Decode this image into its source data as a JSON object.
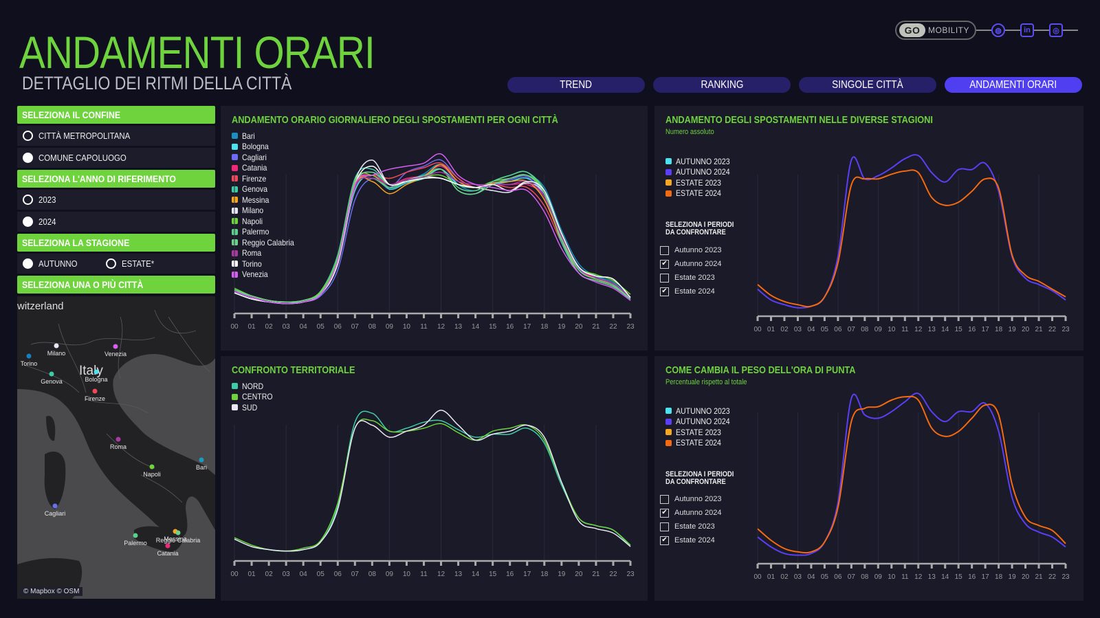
{
  "header": {
    "title": "ANDAMENTI ORARI",
    "subtitle": "DETTAGLIO DEI RITMI DELLA CITTÀ"
  },
  "brand": {
    "logo_text": "GO",
    "name": "MOBILITY",
    "icons": [
      "globe-icon",
      "linkedin-icon",
      "instagram-icon"
    ],
    "linkedin_glyph": "in",
    "globe_glyph": "◍",
    "instagram_glyph": "◎"
  },
  "colors": {
    "accent_green": "#6ed33c",
    "tab_active": "#4f3ff0",
    "tab_inactive": "#262069",
    "panel_bg": "#1a1a29",
    "page_bg": "#0f0f1e"
  },
  "tabs": [
    {
      "label": "TREND",
      "active": false
    },
    {
      "label": "RANKING",
      "active": false
    },
    {
      "label": "SINGOLE CITTÀ",
      "active": false
    },
    {
      "label": "ANDAMENTI ORARI",
      "active": true
    }
  ],
  "sidebar": {
    "confine": {
      "heading": "SELEZIONA IL CONFINE",
      "options": [
        {
          "label": "CITTÀ METROPOLITANA",
          "selected": false
        },
        {
          "label": "COMUNE CAPOLUOGO",
          "selected": true
        }
      ]
    },
    "anno": {
      "heading": "SELEZIONA L'ANNO DI RIFERIMENTO",
      "options": [
        {
          "label": "2023",
          "selected": false
        },
        {
          "label": "2024",
          "selected": true
        }
      ]
    },
    "stagione": {
      "heading": "SELEZIONA LA STAGIONE",
      "options": [
        {
          "label": "AUTUNNO",
          "selected": true
        },
        {
          "label": "ESTATE*",
          "selected": false
        }
      ]
    },
    "citta": {
      "heading": "SELEZIONA UNA O PIÙ CITTÀ"
    }
  },
  "map": {
    "country_label": "Italy",
    "neighbor_label": "witzerland",
    "attribution": "© Mapbox © OSM",
    "cities": [
      {
        "name": "Milano",
        "color": "#e8e8f5"
      },
      {
        "name": "Torino",
        "color": "#1a7fc0"
      },
      {
        "name": "Venezia",
        "color": "#d65ef0"
      },
      {
        "name": "Genova",
        "color": "#3fcba5"
      },
      {
        "name": "Bologna",
        "color": "#4fe0f0"
      },
      {
        "name": "Firenze",
        "color": "#f04a5a"
      },
      {
        "name": "Roma",
        "color": "#a83aa0"
      },
      {
        "name": "Napoli",
        "color": "#6ed33c"
      },
      {
        "name": "Bari",
        "color": "#1a9ac0"
      },
      {
        "name": "Cagliari",
        "color": "#6b6bf5"
      },
      {
        "name": "Palermo",
        "color": "#5ccf8a"
      },
      {
        "name": "Messina",
        "color": "#f5a623"
      },
      {
        "name": "Reggio Calabria",
        "color": "#6fd08c"
      },
      {
        "name": "Catania",
        "color": "#f0287a"
      }
    ]
  },
  "compare": {
    "heading_line1": "SELEZIONA I PERIODI",
    "heading_line2": "DA CONFRONTARE"
  },
  "chart_data": [
    {
      "id": "cities",
      "type": "line",
      "title": "ANDAMENTO ORARIO GIORNALIERO DEGLI SPOSTAMENTI PER OGNI CITTÀ",
      "xlabel": "",
      "ylabel": "",
      "x": [
        "00",
        "01",
        "02",
        "03",
        "04",
        "05",
        "06",
        "07",
        "08",
        "09",
        "10",
        "11",
        "12",
        "13",
        "14",
        "15",
        "16",
        "17",
        "18",
        "19",
        "20",
        "21",
        "22",
        "23"
      ],
      "ylim": [
        0,
        100
      ],
      "grid": "vertical",
      "legend": "top-left",
      "series": [
        {
          "name": "Bari",
          "color": "#1a8fc0",
          "values": [
            10,
            6,
            3,
            2,
            3,
            8,
            30,
            80,
            88,
            78,
            82,
            87,
            93,
            80,
            76,
            82,
            84,
            86,
            78,
            50,
            28,
            20,
            16,
            6
          ]
        },
        {
          "name": "Bologna",
          "color": "#4fe0f0",
          "values": [
            9,
            5,
            3,
            2,
            3,
            8,
            28,
            76,
            86,
            77,
            81,
            84,
            90,
            80,
            78,
            80,
            82,
            84,
            74,
            46,
            24,
            19,
            15,
            5
          ]
        },
        {
          "name": "Cagliari",
          "color": "#6b6bf5",
          "values": [
            9,
            5,
            3,
            2,
            3,
            7,
            24,
            70,
            84,
            78,
            88,
            92,
            96,
            84,
            78,
            81,
            83,
            85,
            72,
            45,
            25,
            18,
            14,
            4
          ]
        },
        {
          "name": "Catania",
          "color": "#f0287a",
          "values": [
            11,
            7,
            4,
            3,
            4,
            9,
            30,
            80,
            86,
            80,
            84,
            86,
            92,
            82,
            78,
            80,
            80,
            80,
            72,
            46,
            26,
            18,
            14,
            6
          ]
        },
        {
          "name": "Firenze",
          "color": "#f04a5a",
          "values": [
            10,
            6,
            3,
            2,
            3,
            8,
            28,
            78,
            86,
            84,
            88,
            91,
            94,
            84,
            78,
            80,
            78,
            78,
            66,
            42,
            24,
            18,
            15,
            6
          ]
        },
        {
          "name": "Genova",
          "color": "#3fcba5",
          "values": [
            11,
            6,
            3,
            2,
            4,
            10,
            34,
            84,
            90,
            80,
            83,
            86,
            90,
            76,
            74,
            82,
            86,
            88,
            74,
            42,
            22,
            17,
            13,
            5
          ]
        },
        {
          "name": "Messina",
          "color": "#f5a623",
          "values": [
            11,
            7,
            4,
            3,
            4,
            9,
            30,
            80,
            82,
            74,
            80,
            85,
            93,
            82,
            78,
            81,
            82,
            82,
            70,
            44,
            24,
            18,
            14,
            6
          ]
        },
        {
          "name": "Milano",
          "color": "#e8e8f5",
          "values": [
            9,
            5,
            3,
            2,
            3,
            8,
            30,
            82,
            96,
            80,
            83,
            85,
            84,
            80,
            78,
            76,
            75,
            81,
            74,
            46,
            26,
            20,
            18,
            6
          ]
        },
        {
          "name": "Napoli",
          "color": "#6ed33c",
          "values": [
            12,
            7,
            4,
            3,
            4,
            10,
            32,
            82,
            86,
            78,
            82,
            85,
            86,
            80,
            78,
            82,
            84,
            86,
            76,
            48,
            26,
            21,
            17,
            8
          ]
        },
        {
          "name": "Palermo",
          "color": "#5ccf8a",
          "values": [
            11,
            7,
            4,
            3,
            4,
            9,
            30,
            78,
            84,
            78,
            82,
            85,
            90,
            78,
            76,
            82,
            86,
            88,
            76,
            46,
            24,
            18,
            14,
            6
          ]
        },
        {
          "name": "Reggio Calabria",
          "color": "#6fd08c",
          "values": [
            11,
            7,
            4,
            3,
            4,
            9,
            30,
            80,
            88,
            80,
            82,
            84,
            90,
            76,
            74,
            80,
            84,
            86,
            74,
            44,
            22,
            17,
            13,
            5
          ]
        },
        {
          "name": "Roma",
          "color": "#a83aa0",
          "values": [
            10,
            6,
            3,
            2,
            3,
            8,
            28,
            78,
            84,
            80,
            83,
            85,
            88,
            82,
            80,
            80,
            80,
            82,
            72,
            46,
            26,
            19,
            15,
            6
          ]
        },
        {
          "name": "Torino",
          "color": "#ffffff",
          "values": [
            9,
            5,
            3,
            2,
            3,
            8,
            28,
            80,
            92,
            80,
            82,
            84,
            84,
            80,
            78,
            80,
            76,
            82,
            76,
            48,
            26,
            20,
            18,
            6
          ]
        },
        {
          "name": "Venezia",
          "color": "#d65ef0",
          "values": [
            10,
            6,
            3,
            2,
            3,
            8,
            30,
            80,
            86,
            90,
            92,
            94,
            100,
            86,
            80,
            78,
            76,
            76,
            62,
            38,
            22,
            16,
            12,
            4
          ]
        }
      ]
    },
    {
      "id": "territorial",
      "type": "line",
      "title": "CONFRONTO TERRITORIALE",
      "xlabel": "",
      "ylabel": "",
      "x": [
        "00",
        "01",
        "02",
        "03",
        "04",
        "05",
        "06",
        "07",
        "08",
        "09",
        "10",
        "11",
        "12",
        "13",
        "14",
        "15",
        "16",
        "17",
        "18",
        "19",
        "20",
        "21",
        "22",
        "23"
      ],
      "ylim": [
        0,
        100
      ],
      "grid": "vertical",
      "legend": "top-left",
      "series": [
        {
          "name": "NORD",
          "color": "#3fcba5",
          "values": [
            10,
            5,
            3,
            2,
            3,
            8,
            32,
            88,
            94,
            82,
            84,
            88,
            89,
            83,
            78,
            80,
            80,
            84,
            74,
            46,
            24,
            19,
            16,
            5
          ]
        },
        {
          "name": "CENTRO",
          "color": "#6ed33c",
          "values": [
            11,
            6,
            3,
            2,
            4,
            9,
            34,
            84,
            89,
            82,
            82,
            84,
            87,
            81,
            76,
            82,
            84,
            86,
            76,
            48,
            24,
            19,
            16,
            6
          ]
        },
        {
          "name": "SUD",
          "color": "#e8e8f5",
          "values": [
            10,
            5,
            3,
            2,
            3,
            8,
            30,
            84,
            86,
            78,
            82,
            86,
            96,
            86,
            76,
            80,
            82,
            86,
            78,
            48,
            22,
            17,
            14,
            5
          ]
        }
      ]
    },
    {
      "id": "seasons-absolute",
      "type": "line",
      "title": "ANDAMENTO DEGLI SPOSTAMENTI NELLE DIVERSE STAGIONI",
      "subtitle": "Numero assoluto",
      "xlabel": "",
      "ylabel": "",
      "x": [
        "00",
        "01",
        "02",
        "03",
        "04",
        "05",
        "06",
        "07",
        "08",
        "09",
        "10",
        "11",
        "12",
        "13",
        "14",
        "15",
        "16",
        "17",
        "18",
        "19",
        "20",
        "21",
        "22",
        "23"
      ],
      "ylim": [
        0,
        100
      ],
      "grid": "vertical",
      "legend": "top-left",
      "legend_entries": [
        {
          "name": "AUTUNNO 2023",
          "color": "#4fe0f0"
        },
        {
          "name": "AUTUNNO 2024",
          "color": "#5b3ff5"
        },
        {
          "name": "ESTATE 2023",
          "color": "#f5a623"
        },
        {
          "name": "ESTATE 2024",
          "color": "#f56a10"
        }
      ],
      "period_selector": [
        {
          "label": "Autunno 2023",
          "checked": false
        },
        {
          "label": "Autunno 2024",
          "checked": true
        },
        {
          "label": "Estate 2023",
          "checked": false
        },
        {
          "label": "Estate 2024",
          "checked": true
        }
      ],
      "series": [
        {
          "name": "AUTUNNO 2024",
          "color": "#5b3ff5",
          "values": [
            13,
            6,
            3,
            1,
            2,
            8,
            34,
            96,
            84,
            86,
            91,
            97,
            99,
            88,
            82,
            90,
            90,
            94,
            76,
            34,
            20,
            16,
            12,
            6
          ]
        },
        {
          "name": "ESTATE 2024",
          "color": "#f56a10",
          "values": [
            16,
            9,
            5,
            3,
            2,
            8,
            30,
            80,
            84,
            84,
            87,
            89,
            88,
            72,
            67,
            69,
            76,
            84,
            78,
            35,
            22,
            18,
            13,
            8
          ]
        }
      ]
    },
    {
      "id": "peak-share",
      "type": "line",
      "title": "COME CAMBIA IL PESO DELL'ORA DI PUNTA",
      "subtitle": "Percentuale rispetto al totale",
      "xlabel": "",
      "ylabel": "",
      "x": [
        "00",
        "01",
        "02",
        "03",
        "04",
        "05",
        "06",
        "07",
        "08",
        "09",
        "10",
        "11",
        "12",
        "13",
        "14",
        "15",
        "16",
        "17",
        "18",
        "19",
        "20",
        "21",
        "22",
        "23"
      ],
      "ylim": [
        0,
        100
      ],
      "grid": "vertical",
      "legend": "top-left",
      "legend_entries": [
        {
          "name": "AUTUNNO 2023",
          "color": "#4fe0f0"
        },
        {
          "name": "AUTUNNO 2024",
          "color": "#5b3ff5"
        },
        {
          "name": "ESTATE 2023",
          "color": "#f5a623"
        },
        {
          "name": "ESTATE 2024",
          "color": "#f56a10"
        }
      ],
      "period_selector": [
        {
          "label": "Autunno 2023",
          "checked": false
        },
        {
          "label": "Autunno 2024",
          "checked": true
        },
        {
          "label": "Estate 2023",
          "checked": false
        },
        {
          "label": "Estate 2024",
          "checked": true
        }
      ],
      "series": [
        {
          "name": "AUTUNNO 2024",
          "color": "#5b3ff5",
          "values": [
            12,
            6,
            2,
            1,
            2,
            9,
            33,
            96,
            86,
            84,
            88,
            94,
            99,
            88,
            82,
            88,
            88,
            93,
            76,
            36,
            20,
            15,
            12,
            6
          ]
        },
        {
          "name": "ESTATE 2024",
          "color": "#f56a10",
          "values": [
            17,
            10,
            5,
            3,
            3,
            9,
            30,
            82,
            90,
            91,
            95,
            97,
            95,
            78,
            73,
            76,
            84,
            92,
            86,
            44,
            24,
            19,
            16,
            8
          ]
        }
      ]
    }
  ]
}
